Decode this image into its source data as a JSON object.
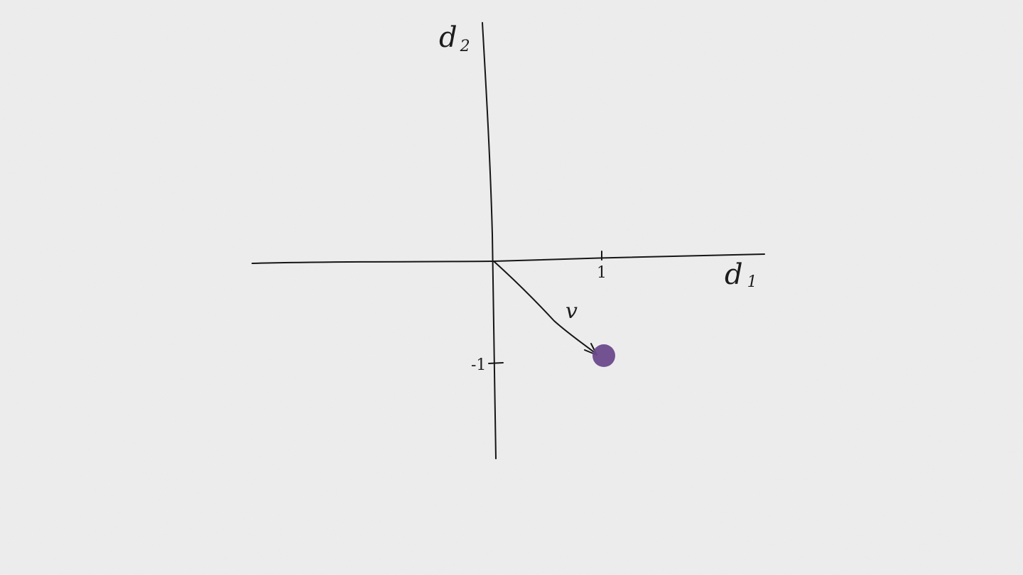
{
  "diagram": {
    "x_axis": {
      "name": "d",
      "subscript": "1"
    },
    "y_axis": {
      "name": "d",
      "subscript": "2"
    },
    "x_tick": {
      "label": "1",
      "value": 1
    },
    "y_tick": {
      "label": "-1",
      "value": -1
    },
    "vector": {
      "label": "v",
      "tip": [
        1,
        -1
      ]
    },
    "point": {
      "coords": [
        1,
        -1
      ],
      "color": "#6b4a8c"
    }
  }
}
